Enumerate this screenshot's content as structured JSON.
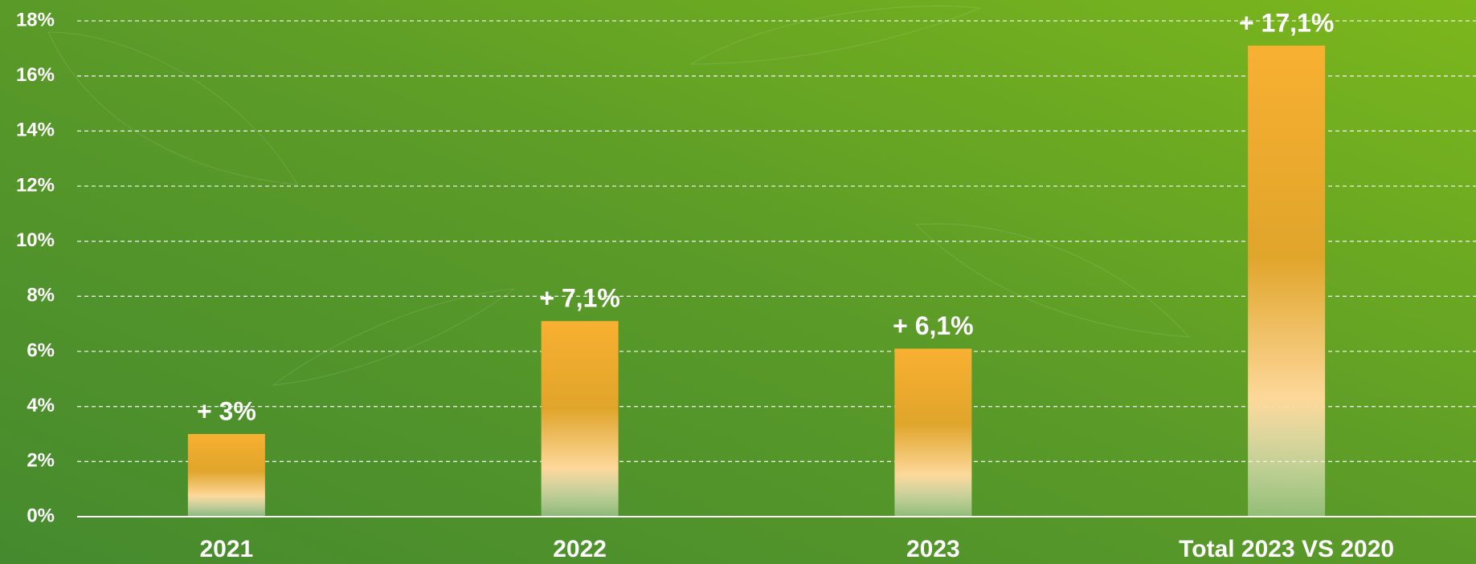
{
  "chart_data": {
    "type": "bar",
    "categories": [
      "2021",
      "2022",
      "2023",
      "Total 2023 VS 2020"
    ],
    "values": [
      3,
      7.1,
      6.1,
      17.1
    ],
    "value_labels": [
      "+ 3%",
      "+ 7,1%",
      "+ 6,1%",
      "+ 17,1%"
    ],
    "color": "#f6ae2f",
    "ylim": [
      0,
      18
    ],
    "yticks": [
      {
        "value": 0,
        "label": "0%"
      },
      {
        "value": 2,
        "label": "2%"
      },
      {
        "value": 4,
        "label": "4%"
      },
      {
        "value": 6,
        "label": "6%"
      },
      {
        "value": 8,
        "label": "8%"
      },
      {
        "value": 10,
        "label": "10%"
      },
      {
        "value": 12,
        "label": "12%"
      },
      {
        "value": 14,
        "label": "14%"
      },
      {
        "value": 16,
        "label": "16%"
      },
      {
        "value": 18,
        "label": "18%"
      }
    ],
    "grid": true
  }
}
